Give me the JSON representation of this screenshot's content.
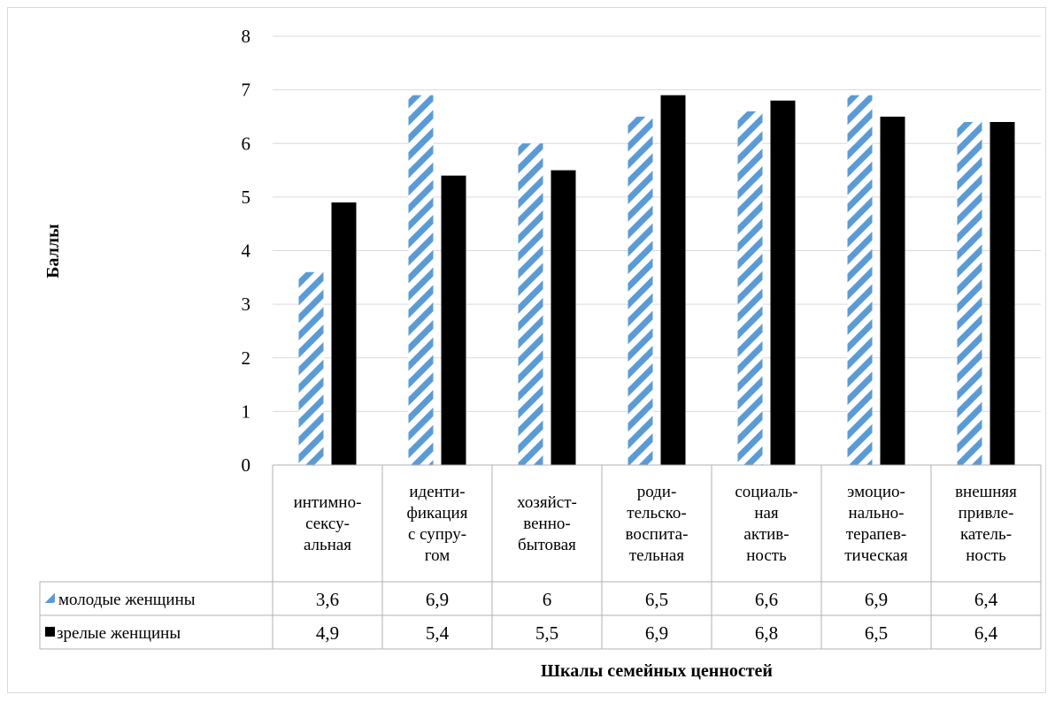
{
  "chart_data": {
    "type": "bar",
    "title": "",
    "xlabel": "Шкалы семейных ценностей",
    "ylabel": "Баллы",
    "ylim": [
      0,
      8
    ],
    "yticks": [
      0,
      1,
      2,
      3,
      4,
      5,
      6,
      7,
      8
    ],
    "grid": true,
    "legend": "data-table-left",
    "categories": [
      [
        "интимно-",
        "сексу-",
        "альная"
      ],
      [
        "иденти-",
        "фикация",
        "с супру-",
        "гом"
      ],
      [
        "хозяйст-",
        "венно-",
        "бытовая"
      ],
      [
        "роди-",
        "тельско-",
        "воспита-",
        "тельная"
      ],
      [
        "социаль-",
        "ная",
        "актив-",
        "ность"
      ],
      [
        "эмоцио-",
        "нально-",
        "терапев-",
        "тическая"
      ],
      [
        "внешняя",
        "привле-",
        "катель-",
        "ность"
      ]
    ],
    "series": [
      {
        "name": "молодые женщины",
        "values": [
          3.6,
          6.9,
          6,
          6.5,
          6.6,
          6.9,
          6.4
        ],
        "labels": [
          "3,6",
          "6,9",
          "6",
          "6,5",
          "6,6",
          "6,9",
          "6,4"
        ],
        "color": "#5b9bd5",
        "pattern": "diagonal-stripes"
      },
      {
        "name": "зрелые женщины",
        "values": [
          4.9,
          5.4,
          5.5,
          6.9,
          6.8,
          6.5,
          6.4
        ],
        "labels": [
          "4,9",
          "5,4",
          "5,5",
          "6,9",
          "6,8",
          "6,5",
          "6,4"
        ],
        "color": "#000000",
        "pattern": "solid"
      }
    ]
  }
}
